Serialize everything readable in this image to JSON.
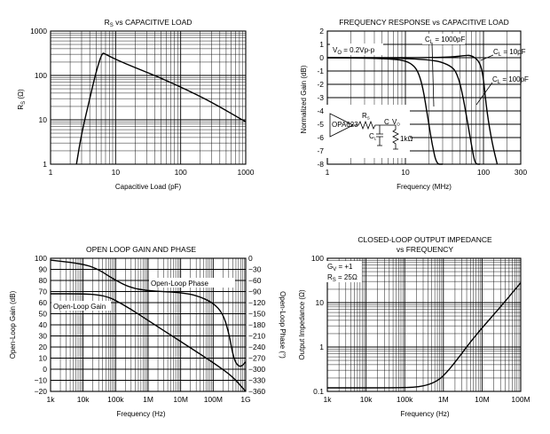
{
  "chart_data": [
    {
      "id": "rs-vs-cap",
      "type": "line",
      "title": "R_S vs CAPACITIVE LOAD",
      "title_main": "R",
      "title_sub": "S",
      "title_rest": " vs CAPACITIVE LOAD",
      "xlabel": "Capacitive Load (pF)",
      "ylabel": "R_S (Ω)",
      "ylabel_main": "R",
      "ylabel_sub": "S",
      "ylabel_rest": " (Ω)",
      "xscale": "log",
      "yscale": "log",
      "xlim": [
        1,
        1000
      ],
      "ylim": [
        1,
        1000
      ],
      "xticks": [
        1,
        10,
        100,
        1000
      ],
      "xtick_labels": [
        "1",
        "10",
        "100",
        "1000"
      ],
      "yticks": [
        1,
        10,
        100,
        1000
      ],
      "ytick_labels": [
        "1",
        "10",
        "100",
        "1000"
      ],
      "series": [
        {
          "name": "R_S",
          "x": [
            2.5,
            3.0,
            4.0,
            5.0,
            6.2,
            7.0,
            10,
            20,
            40,
            100,
            300,
            1000
          ],
          "y": [
            1,
            5,
            30,
            120,
            330,
            300,
            230,
            150,
            100,
            55,
            25,
            9
          ]
        }
      ]
    },
    {
      "id": "freq-response",
      "type": "line",
      "title": "FREQUENCY RESPONSE vs CAPACITIVE LOAD",
      "xlabel": "Frequency (MHz)",
      "ylabel": "Normalized Gain (dB)",
      "xscale": "log",
      "yscale": "linear",
      "xlim": [
        1,
        300
      ],
      "ylim": [
        -8,
        2
      ],
      "xticks": [
        1,
        10,
        100,
        300
      ],
      "xtick_labels": [
        "1",
        "10",
        "100",
        "300"
      ],
      "yticks": [
        2,
        1,
        0,
        -1,
        -2,
        -3,
        -4,
        -5,
        -6,
        -7,
        -8
      ],
      "ytick_labels": [
        "2",
        "1",
        "0",
        "-1",
        "-2",
        "-3",
        "-4",
        "-5",
        "-6",
        "-7",
        "-8"
      ],
      "annotations": {
        "vo": "V",
        "vo_sub": "O",
        "vo_rest": " = 0.2Vp-p",
        "c1000": "C",
        "c1000_sub": "L",
        "c1000_rest": " = 1000pF",
        "c10": "C",
        "c10_sub": "L",
        "c10_rest": " = 10pF",
        "c100": "C",
        "c100_sub": "L",
        "c100_rest": " = 100pF",
        "schematic": {
          "chip": "OPA623",
          "rs": "R",
          "rs_sub": "S",
          "cl": "C",
          "cl_sub": "L",
          "r1k": "1kΩ",
          "vo": "V",
          "vo_sub": "O",
          "c": "C"
        }
      },
      "series": [
        {
          "name": "C_L = 1000pF",
          "x": [
            1,
            6,
            12,
            16,
            20,
            22,
            25,
            30
          ],
          "y": [
            0,
            -0.05,
            -0.3,
            -1.5,
            -5,
            -6.5,
            -8,
            -8
          ]
        },
        {
          "name": "C_L = 10pF",
          "x": [
            1,
            20,
            40,
            55,
            70,
            90,
            100,
            110,
            130,
            150
          ],
          "y": [
            0,
            0,
            0.05,
            0.15,
            0.2,
            -0.3,
            -1.5,
            -4,
            -6.5,
            -8
          ]
        },
        {
          "name": "C_L = 100pF",
          "x": [
            1,
            20,
            40,
            48,
            55,
            63,
            70,
            75,
            80,
            90
          ],
          "y": [
            0,
            -0.05,
            -0.6,
            -1.5,
            -3,
            -5,
            -6.5,
            -7.5,
            -8,
            -8
          ]
        }
      ]
    },
    {
      "id": "open-loop",
      "type": "line",
      "title": "OPEN LOOP GAIN AND PHASE",
      "xlabel": "Frequency (Hz)",
      "ylabel": "Open-Loop Gain (dB)",
      "ylabel_right": "Open-Loop Phase (°)",
      "xscale": "log",
      "xlim": [
        1000,
        1000000000
      ],
      "ylim": [
        -20,
        100
      ],
      "ylim_right": [
        -360,
        0
      ],
      "xticks": [
        1000,
        10000,
        100000,
        1000000,
        10000000,
        100000000,
        1000000000
      ],
      "xtick_labels": [
        "1k",
        "10k",
        "100k",
        "1M",
        "10M",
        "100M",
        "1G"
      ],
      "yticks": [
        100,
        90,
        80,
        70,
        60,
        50,
        40,
        30,
        20,
        10,
        0,
        -10,
        -20
      ],
      "ytick_labels": [
        "100",
        "90",
        "80",
        "70",
        "60",
        "50",
        "40",
        "30",
        "20",
        "10",
        "0",
        "−10",
        "−20"
      ],
      "yticks_right": [
        0,
        -30,
        -60,
        -90,
        -120,
        -150,
        -180,
        -210,
        -240,
        -270,
        -300,
        -330,
        -360
      ],
      "ytick_labels_right": [
        "0",
        "−30",
        "−60",
        "−90",
        "−120",
        "−150",
        "−180",
        "−210",
        "−240",
        "−270",
        "−300",
        "−330",
        "−360"
      ],
      "annotations": {
        "phase": "Open-Loop Phase",
        "gain": "Open-Loop Gain"
      },
      "series": [
        {
          "name": "Open-Loop Gain",
          "axis": "left",
          "x": [
            1000,
            10000,
            30000,
            60000,
            100000,
            300000,
            1000000,
            10000000,
            100000000,
            300000000,
            500000000,
            1000000000
          ],
          "y": [
            68,
            68,
            67,
            65,
            62,
            54,
            44,
            25,
            6,
            -4,
            -10,
            -20
          ]
        },
        {
          "name": "Open-Loop Phase",
          "axis": "right",
          "x": [
            1000,
            10000,
            30000,
            100000,
            300000,
            1000000,
            3000000,
            10000000,
            30000000,
            100000000,
            200000000,
            300000000,
            400000000,
            500000000,
            700000000,
            1000000000
          ],
          "y": [
            -5,
            -15,
            -30,
            -60,
            -80,
            -88,
            -90,
            -93,
            -100,
            -120,
            -150,
            -200,
            -260,
            -285,
            -295,
            -280
          ]
        }
      ]
    },
    {
      "id": "output-impedance",
      "type": "line",
      "title": "CLOSED-LOOP OUTPUT IMPEDANCE vs FREQUENCY",
      "title_line1": "CLOSED-LOOP OUTPUT IMPEDANCE",
      "title_line2": "vs FREQUENCY",
      "xlabel": "Frequency (Hz)",
      "ylabel": "Output Impedance (Ω)",
      "xscale": "log",
      "yscale": "log",
      "xlim": [
        1000,
        100000000
      ],
      "ylim": [
        0.1,
        100
      ],
      "xticks": [
        1000,
        10000,
        100000,
        1000000,
        10000000,
        100000000
      ],
      "xtick_labels": [
        "1k",
        "10k",
        "100k",
        "1M",
        "10M",
        "100M"
      ],
      "yticks": [
        0.1,
        1,
        10,
        100
      ],
      "ytick_labels": [
        "0.1",
        "1",
        "10",
        "100"
      ],
      "annotations": {
        "gain": "G",
        "gain_sub": "V",
        "gain_rest": " = +1",
        "rs": "R",
        "rs_sub": "S",
        "rs_rest": " = 25Ω"
      },
      "series": [
        {
          "name": "Z_out",
          "x": [
            1000,
            100000,
            300000,
            600000,
            1000000,
            2000000,
            5000000,
            10000000,
            30000000,
            100000000
          ],
          "y": [
            0.12,
            0.12,
            0.13,
            0.16,
            0.22,
            0.45,
            1.3,
            2.7,
            8,
            28
          ]
        }
      ]
    }
  ]
}
